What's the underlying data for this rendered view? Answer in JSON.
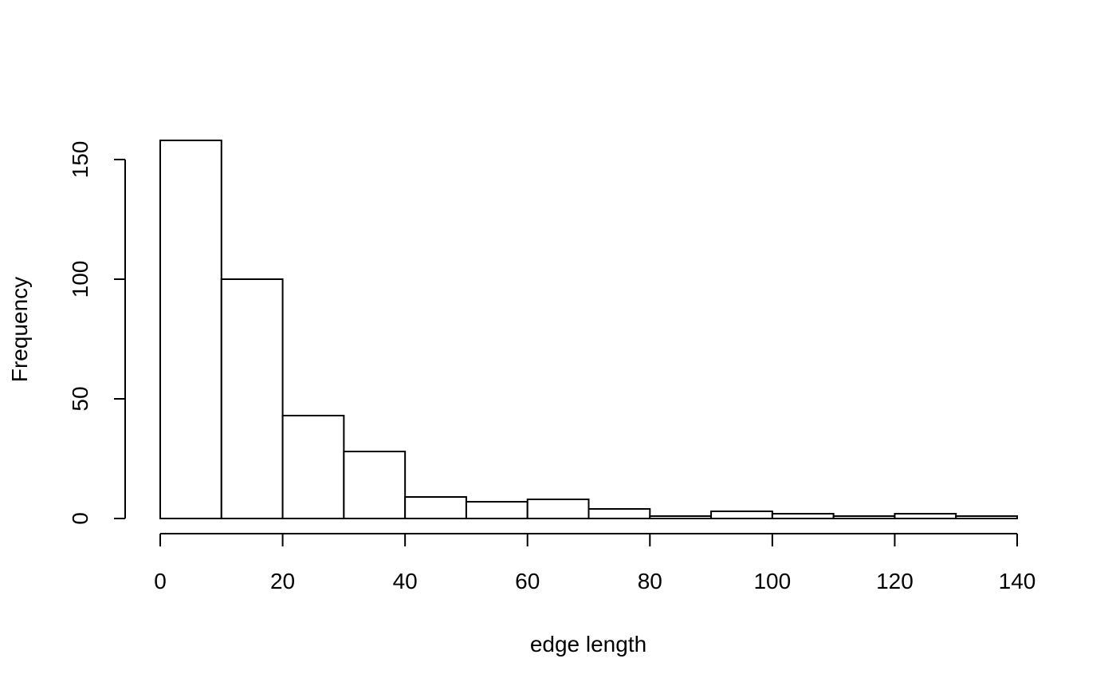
{
  "chart_data": {
    "type": "bar",
    "title": "",
    "xlabel": "edge length",
    "ylabel": "Frequency",
    "bin_edges": [
      0,
      10,
      20,
      30,
      40,
      50,
      60,
      70,
      80,
      90,
      100,
      110,
      120,
      130,
      140
    ],
    "values": [
      158,
      100,
      43,
      28,
      9,
      7,
      8,
      4,
      1,
      3,
      2,
      1,
      2,
      1
    ],
    "xlim": [
      0,
      140
    ],
    "ylim": [
      0,
      150
    ],
    "x_ticks": [
      0,
      20,
      40,
      60,
      80,
      100,
      120,
      140
    ],
    "x_tick_labels": [
      "0",
      "20",
      "40",
      "60",
      "80",
      "100",
      "120",
      "140"
    ],
    "y_ticks": [
      0,
      50,
      100,
      150
    ],
    "y_tick_labels": [
      "0",
      "50",
      "100",
      "150"
    ],
    "grid": false,
    "legend": "none",
    "colors": {
      "bar_fill": "#ffffff",
      "bar_stroke": "#000000"
    }
  }
}
